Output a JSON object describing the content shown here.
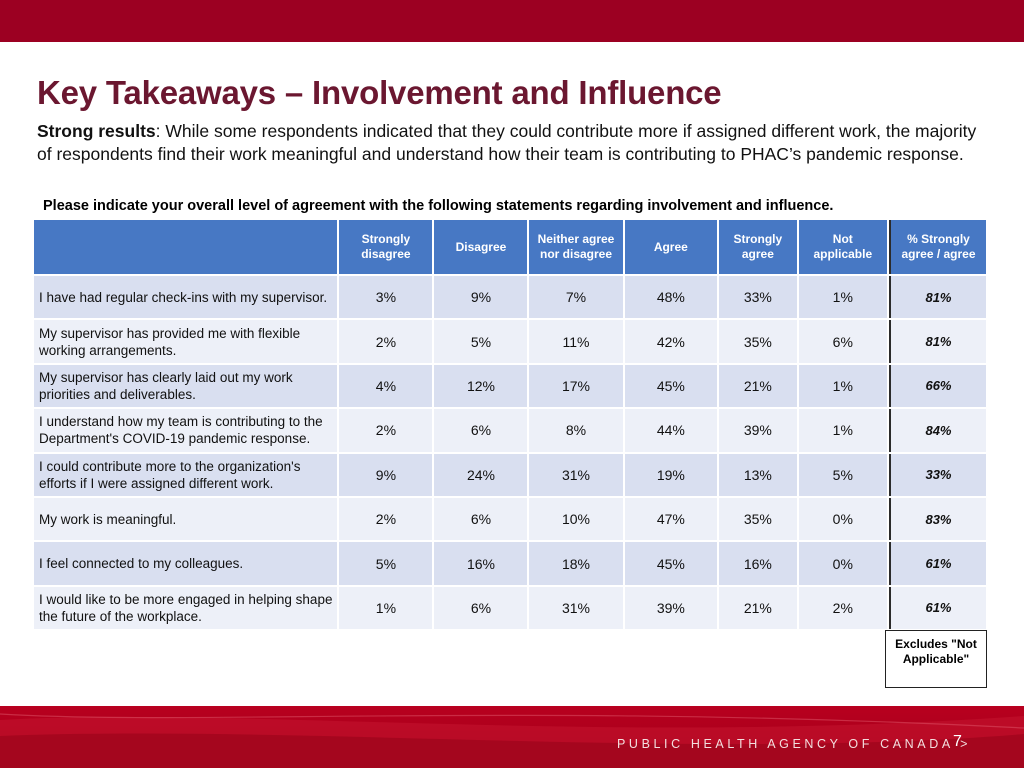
{
  "slide": {
    "title": "Key Takeaways – Involvement and Influence",
    "intro_strong": "Strong results",
    "intro_rest": ": While some respondents indicated that they could contribute more if assigned different work, the majority of respondents find their work meaningful and understand how their team is contributing to PHAC’s pandemic response.",
    "question": "Please indicate your overall level of agreement with the following statements regarding involvement and influence.",
    "note": "Excludes \"Not Applicable\"",
    "footer_agency": "PUBLIC HEALTH AGENCY OF CANADA >",
    "page_number": "7"
  },
  "table": {
    "headers": [
      "",
      "Strongly disagree",
      "Disagree",
      "Neither agree nor disagree",
      "Agree",
      "Strongly agree",
      "Not applicable",
      "% Strongly agree / agree"
    ],
    "rows": [
      {
        "statement": "I have had regular check-ins with my supervisor.",
        "values": [
          "3%",
          "9%",
          "7%",
          "48%",
          "33%",
          "1%"
        ],
        "summary": "81%"
      },
      {
        "statement": "My supervisor has provided me with flexible working arrangements.",
        "values": [
          "2%",
          "5%",
          "11%",
          "42%",
          "35%",
          "6%"
        ],
        "summary": "81%"
      },
      {
        "statement": "My supervisor has clearly laid out my work priorities and deliverables.",
        "values": [
          "4%",
          "12%",
          "17%",
          "45%",
          "21%",
          "1%"
        ],
        "summary": "66%"
      },
      {
        "statement": "I understand how my team is contributing to the Department's COVID-19 pandemic response.",
        "values": [
          "2%",
          "6%",
          "8%",
          "44%",
          "39%",
          "1%"
        ],
        "summary": "84%"
      },
      {
        "statement": "I could contribute more to the organization's efforts if I were assigned different work.",
        "values": [
          "9%",
          "24%",
          "31%",
          "19%",
          "13%",
          "5%"
        ],
        "summary": "33%"
      },
      {
        "statement": "My work is meaningful.",
        "values": [
          "2%",
          "6%",
          "10%",
          "47%",
          "35%",
          "0%"
        ],
        "summary": "83%"
      },
      {
        "statement": "I feel connected to my colleagues.",
        "values": [
          "5%",
          "16%",
          "18%",
          "45%",
          "16%",
          "0%"
        ],
        "summary": "61%"
      },
      {
        "statement": "I would like to be more engaged in helping shape the future of the workplace.",
        "values": [
          "1%",
          "6%",
          "31%",
          "39%",
          "21%",
          "2%"
        ],
        "summary": "61%"
      }
    ]
  },
  "colors": {
    "brand_red": "#9c0022",
    "title": "#6b1730",
    "header_blue": "#4778c4",
    "row_odd": "#d9dff0",
    "row_even": "#edf0f8"
  }
}
